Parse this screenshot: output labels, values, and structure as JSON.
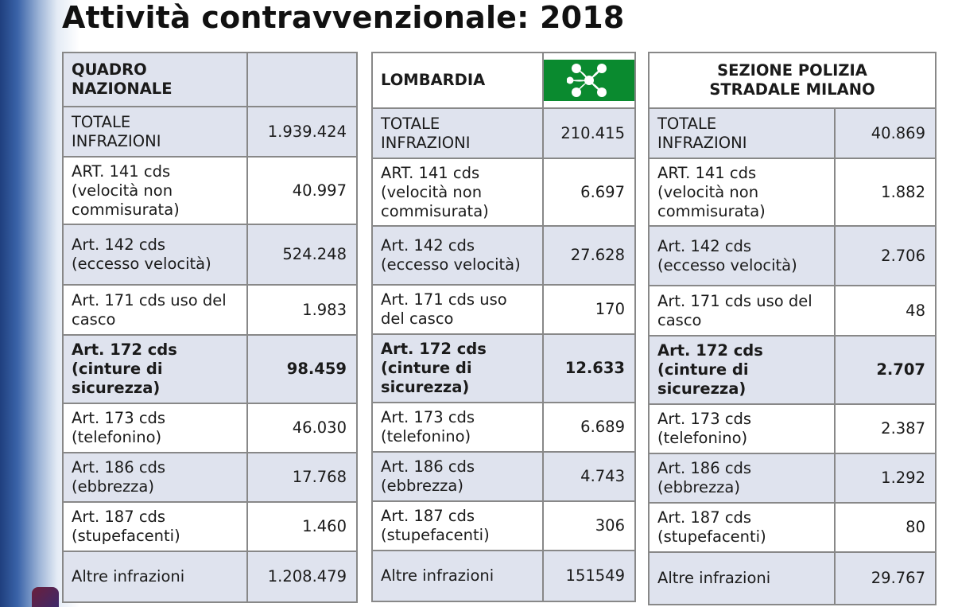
{
  "title": "Attività contravvenzionale: 2018",
  "colors": {
    "row_shade": "#dfe3ee",
    "border": "#888888",
    "flag_lombardia_green": "#0a8a2f"
  },
  "tables": [
    {
      "header_line1": "QUADRO",
      "header_line2": "NAZIONALE",
      "header_icon": "italy-flag",
      "rows": [
        {
          "label1": "TOTALE",
          "label2": "INFRAZIONI",
          "label3": "",
          "value": "1.939.424"
        },
        {
          "label1": "ART. 141 cds",
          "label2": "(velocità non",
          "label3": "commisurata)",
          "value": "40.997"
        },
        {
          "label1": "Art. 142 cds",
          "label2": "(eccesso velocità)",
          "label3": "",
          "value": "524.248"
        },
        {
          "label1": "Art. 171 cds uso del",
          "label2": "casco",
          "label3": "",
          "value": "1.983"
        },
        {
          "label1": "Art. 172 cds",
          "label2": "(cinture di",
          "label3": "sicurezza)",
          "value": "98.459"
        },
        {
          "label1": "Art. 173 cds",
          "label2": "(telefonino)",
          "label3": "",
          "value": "46.030"
        },
        {
          "label1": "Art. 186 cds",
          "label2": "(ebbrezza)",
          "label3": "",
          "value": "17.768"
        },
        {
          "label1": "Art. 187 cds",
          "label2": "(stupefacenti)",
          "label3": "",
          "value": "1.460"
        },
        {
          "label1": "Altre infrazioni",
          "label2": "",
          "label3": "",
          "value": "1.208.479"
        }
      ]
    },
    {
      "header_line1": "LOMBARDIA",
      "header_line2": "",
      "header_icon": "lombardia-flag",
      "rows": [
        {
          "label1": "TOTALE",
          "label2": "INFRAZIONI",
          "label3": "",
          "value": "210.415"
        },
        {
          "label1": "ART. 141 cds",
          "label2": "(velocità non",
          "label3": "commisurata)",
          "value": "6.697"
        },
        {
          "label1": "Art. 142 cds",
          "label2": "(eccesso velocità)",
          "label3": "",
          "value": "27.628"
        },
        {
          "label1": "Art. 171 cds uso",
          "label2": "del casco",
          "label3": "",
          "value": "170"
        },
        {
          "label1": "Art. 172 cds",
          "label2": "(cinture di",
          "label3": "sicurezza)",
          "value": "12.633"
        },
        {
          "label1": "Art. 173 cds",
          "label2": "(telefonino)",
          "label3": "",
          "value": "6.689"
        },
        {
          "label1": "Art. 186 cds",
          "label2": "(ebbrezza)",
          "label3": "",
          "value": "4.743"
        },
        {
          "label1": "Art. 187 cds",
          "label2": "(stupefacenti)",
          "label3": "",
          "value": "306"
        },
        {
          "label1": "Altre infrazioni",
          "label2": "",
          "label3": "",
          "value": "151549"
        }
      ]
    },
    {
      "header_line1": "SEZIONE POLIZIA",
      "header_line2": "STRADALE MILANO",
      "header_icon": "",
      "rows": [
        {
          "label1": "TOTALE",
          "label2": "INFRAZIONI",
          "label3": "",
          "value": "40.869"
        },
        {
          "label1": "ART. 141 cds",
          "label2": "(velocità non",
          "label3": "commisurata)",
          "value": "1.882"
        },
        {
          "label1": "Art. 142 cds",
          "label2": "(eccesso velocità)",
          "label3": "",
          "value": "2.706"
        },
        {
          "label1": "Art. 171 cds uso del",
          "label2": "casco",
          "label3": "",
          "value": "48"
        },
        {
          "label1": "Art. 172 cds",
          "label2": "(cinture di",
          "label3": "sicurezza)",
          "value": "2.707"
        },
        {
          "label1": "Art. 173 cds",
          "label2": "(telefonino)",
          "label3": "",
          "value": "2.387"
        },
        {
          "label1": "Art. 186 cds",
          "label2": "(ebbrezza)",
          "label3": "",
          "value": "1.292"
        },
        {
          "label1": "Art. 187 cds",
          "label2": "(stupefacenti)",
          "label3": "",
          "value": "80"
        },
        {
          "label1": "Altre infrazioni",
          "label2": "",
          "label3": "",
          "value": "29.767"
        }
      ]
    }
  ]
}
